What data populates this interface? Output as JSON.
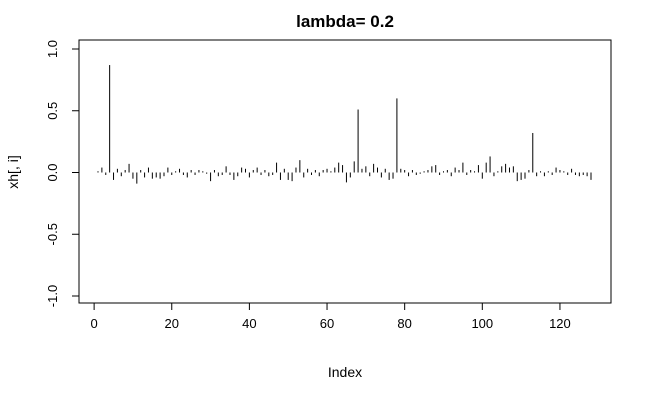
{
  "chart_data": {
    "type": "line",
    "plot_style": "histogram-like vertical lines (type='h')",
    "title": "lambda= 0.2",
    "xlabel": "Index",
    "ylabel": "xh[, i]",
    "xlim": [
      1,
      128
    ],
    "ylim": [
      -1.0,
      1.0
    ],
    "x_ticks": [
      0,
      20,
      40,
      60,
      80,
      100,
      120
    ],
    "x_tick_labels": [
      "0",
      "20",
      "40",
      "60",
      "80",
      "100",
      "120"
    ],
    "y_ticks": [
      -1.0,
      -0.5,
      0.0,
      0.5,
      1.0
    ],
    "y_tick_labels": [
      "-1.0",
      "-0.5",
      "0.0",
      "0.5",
      "1.0"
    ],
    "grid": false,
    "legend": "none",
    "line_color": "#000000",
    "series": [
      {
        "x": [
          1,
          2,
          3,
          4,
          5,
          6,
          7,
          8,
          9,
          10,
          11,
          12,
          13,
          14,
          15,
          16,
          17,
          18,
          19,
          20,
          21,
          22,
          23,
          24,
          25,
          26,
          27,
          28,
          29,
          30,
          31,
          32,
          33,
          34,
          35,
          36,
          37,
          38,
          39,
          40,
          41,
          42,
          43,
          44,
          45,
          46,
          47,
          48,
          49,
          50,
          51,
          52,
          53,
          54,
          55,
          56,
          57,
          58,
          59,
          60,
          61,
          62,
          63,
          64,
          65,
          66,
          67,
          68,
          69,
          70,
          71,
          72,
          73,
          74,
          75,
          76,
          77,
          78,
          79,
          80,
          81,
          82,
          83,
          84,
          85,
          86,
          87,
          88,
          89,
          90,
          91,
          92,
          93,
          94,
          95,
          96,
          97,
          98,
          99,
          100,
          101,
          102,
          103,
          104,
          105,
          106,
          107,
          108,
          109,
          110,
          111,
          112,
          113,
          114,
          115,
          116,
          117,
          118,
          119,
          120,
          121,
          122,
          123,
          124,
          125,
          126,
          127,
          128
        ],
        "values": [
          0.01,
          0.04,
          -0.02,
          0.87,
          -0.06,
          0.03,
          -0.03,
          0.02,
          0.07,
          -0.05,
          -0.09,
          0.02,
          -0.04,
          0.04,
          -0.05,
          -0.04,
          -0.05,
          -0.03,
          0.04,
          -0.02,
          0.01,
          0.03,
          -0.02,
          -0.04,
          0.02,
          -0.02,
          0.02,
          0.01,
          -0.01,
          -0.07,
          0.02,
          -0.03,
          -0.02,
          0.05,
          -0.02,
          -0.06,
          -0.03,
          0.04,
          0.03,
          -0.04,
          0.02,
          0.04,
          -0.02,
          0.02,
          -0.03,
          -0.02,
          0.08,
          -0.06,
          0.03,
          -0.06,
          -0.07,
          0.04,
          0.1,
          -0.04,
          0.03,
          -0.02,
          0.02,
          -0.03,
          0.02,
          0.03,
          0.01,
          0.04,
          0.08,
          0.06,
          -0.08,
          -0.04,
          0.09,
          0.51,
          0.03,
          0.05,
          -0.03,
          0.07,
          0.04,
          -0.04,
          0.03,
          -0.06,
          -0.05,
          0.6,
          0.03,
          0.02,
          -0.03,
          0.02,
          -0.02,
          -0.01,
          0.01,
          0.02,
          0.05,
          0.06,
          -0.02,
          0.01,
          0.02,
          -0.03,
          0.04,
          0.02,
          0.08,
          -0.02,
          0.02,
          0.01,
          0.06,
          -0.05,
          0.08,
          0.13,
          -0.03,
          0.01,
          0.05,
          0.07,
          0.04,
          0.05,
          -0.07,
          -0.06,
          -0.05,
          0.02,
          0.32,
          -0.03,
          0.01,
          -0.03,
          0.01,
          -0.02,
          0.04,
          0.02,
          0.01,
          -0.02,
          0.03,
          -0.02,
          -0.03,
          -0.02,
          -0.03,
          -0.06
        ]
      }
    ]
  }
}
